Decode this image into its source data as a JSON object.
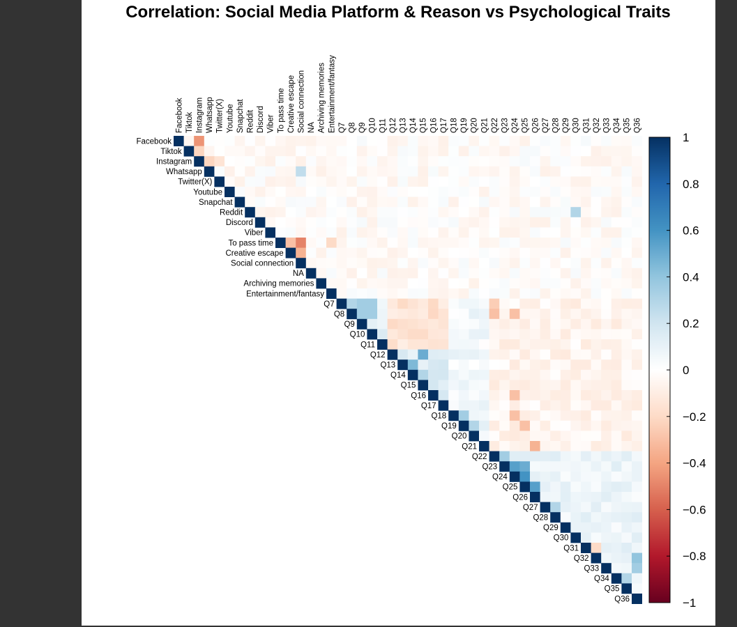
{
  "chart_data": {
    "type": "heatmap",
    "title": "Correlation: Social Media Platform & Reason vs Psychological Traits",
    "layout": "upper-triangle",
    "variables": [
      "Facebook",
      "Tiktok",
      "Instagram",
      "Whatsapp",
      "Twitter(X)",
      "Youtube",
      "Snapchat",
      "Reddit",
      "Discord",
      "Viber",
      "To pass time",
      "Creative escape",
      "Social connection",
      "NA",
      "Archiving memories",
      "Entertainment/fantasy",
      "Q7",
      "Q8",
      "Q9",
      "Q10",
      "Q11",
      "Q12",
      "Q13",
      "Q14",
      "Q15",
      "Q16",
      "Q17",
      "Q18",
      "Q19",
      "Q20",
      "Q21",
      "Q22",
      "Q23",
      "Q24",
      "Q25",
      "Q26",
      "Q27",
      "Q28",
      "Q29",
      "Q30",
      "Q31",
      "Q32",
      "Q33",
      "Q34",
      "Q35",
      "Q36"
    ],
    "value_range": [
      -1,
      1
    ],
    "colorbar": {
      "ticks": [
        "1",
        "0.8",
        "0.6",
        "0.4",
        "0.2",
        "0",
        "−0.2",
        "−0.4",
        "−0.6",
        "−0.8",
        "−1"
      ],
      "tick_values": [
        1,
        0.8,
        0.6,
        0.4,
        0.2,
        0,
        -0.2,
        -0.4,
        -0.6,
        -0.8,
        -1
      ],
      "colors": [
        "#67001f",
        "#b2182b",
        "#d6604d",
        "#f4a582",
        "#fddbc7",
        "#ffffff",
        "#d1e5f0",
        "#92c5de",
        "#4393c3",
        "#2166ac",
        "#053061"
      ]
    },
    "correlations": [
      {
        "a": "Facebook",
        "b": "Instagram",
        "r": -0.45
      },
      {
        "a": "Facebook",
        "b": "Tiktok",
        "r": -0.05
      },
      {
        "a": "Tiktok",
        "b": "Instagram",
        "r": -0.22
      },
      {
        "a": "Instagram",
        "b": "Whatsapp",
        "r": -0.22
      },
      {
        "a": "Instagram",
        "b": "Twitter(X)",
        "r": -0.15
      },
      {
        "a": "Whatsapp",
        "b": "Social connection",
        "r": 0.25
      },
      {
        "a": "To pass time",
        "b": "Creative escape",
        "r": -0.3
      },
      {
        "a": "To pass time",
        "b": "Social connection",
        "r": -0.5
      },
      {
        "a": "Creative escape",
        "b": "Social connection",
        "r": -0.35
      },
      {
        "a": "To pass time",
        "b": "Entertainment/fantasy",
        "r": -0.2
      },
      {
        "a": "Reddit",
        "b": "Q30",
        "r": 0.3
      },
      {
        "a": "Q7",
        "b": "Q8",
        "r": 0.3
      },
      {
        "a": "Q7",
        "b": "Q9",
        "r": 0.35
      },
      {
        "a": "Q7",
        "b": "Q10",
        "r": 0.35
      },
      {
        "a": "Q8",
        "b": "Q9",
        "r": 0.35
      },
      {
        "a": "Q8",
        "b": "Q10",
        "r": 0.35
      },
      {
        "a": "Q12",
        "b": "Q15",
        "r": 0.5
      },
      {
        "a": "Q13",
        "b": "Q14",
        "r": 0.45
      },
      {
        "a": "Q14",
        "b": "Q15",
        "r": 0.3
      },
      {
        "a": "Q18",
        "b": "Q19",
        "r": 0.35
      },
      {
        "a": "Q19",
        "b": "Q20",
        "r": 0.3
      },
      {
        "a": "Q7",
        "b": "Q22",
        "r": -0.25
      },
      {
        "a": "Q8",
        "b": "Q22",
        "r": -0.3
      },
      {
        "a": "Q8",
        "b": "Q24",
        "r": -0.3
      },
      {
        "a": "Q16",
        "b": "Q24",
        "r": -0.3
      },
      {
        "a": "Q18",
        "b": "Q24",
        "r": -0.3
      },
      {
        "a": "Q19",
        "b": "Q25",
        "r": -0.3
      },
      {
        "a": "Q21",
        "b": "Q26",
        "r": -0.35
      },
      {
        "a": "Q22",
        "b": "Q23",
        "r": 0.35
      },
      {
        "a": "Q23",
        "b": "Q24",
        "r": 0.55
      },
      {
        "a": "Q23",
        "b": "Q25",
        "r": 0.5
      },
      {
        "a": "Q24",
        "b": "Q25",
        "r": 0.6
      },
      {
        "a": "Q25",
        "b": "Q26",
        "r": 0.55
      },
      {
        "a": "Q27",
        "b": "Q28",
        "r": 0.3
      },
      {
        "a": "Q31",
        "b": "Q32",
        "r": -0.2
      },
      {
        "a": "Q32",
        "b": "Q36",
        "r": 0.4
      },
      {
        "a": "Q33",
        "b": "Q36",
        "r": 0.35
      },
      {
        "a": "Q34",
        "b": "Q35",
        "r": 0.3
      }
    ]
  }
}
